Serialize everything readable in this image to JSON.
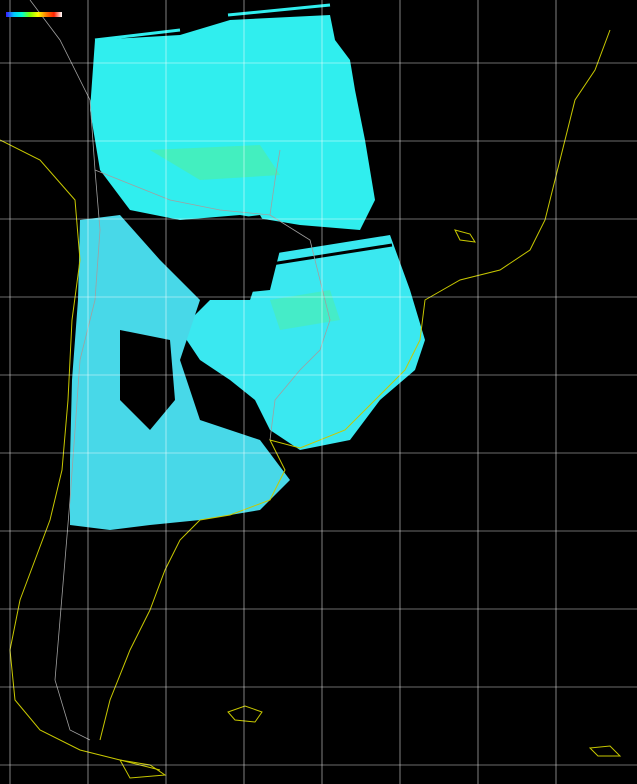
{
  "legend": {
    "colorbar_colors": [
      "#3a1aff",
      "#00c8ff",
      "#00ffd0",
      "#7fff00",
      "#ffff00",
      "#ff8000",
      "#ff2000",
      "#ffffff"
    ]
  },
  "colors": {
    "background": "#000000",
    "coastline": "#c8c800",
    "borders": "#a0a0a0",
    "grid": "#ffffff",
    "cloud_primary": "#30f0f0",
    "cloud_secondary": "#60d8e0"
  }
}
